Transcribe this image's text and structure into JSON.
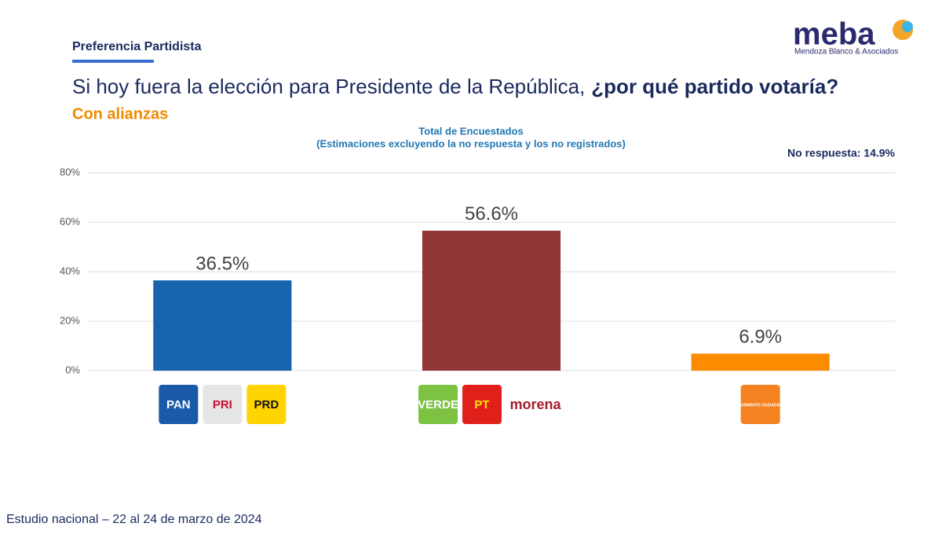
{
  "header": {
    "section": "Preferencia Partidista",
    "question": "Si hoy fuera la elección para Presidente de la República,",
    "question_emphasis": "¿por qué partido votaría?",
    "subtitle": "Con alianzas"
  },
  "brand": {
    "name": "meba",
    "tagline": "Mendoza Blanco & Asociados"
  },
  "footer": "Estudio nacional – 22 al 24 de marzo de 2024",
  "chart_data": {
    "type": "bar",
    "title": "Total de Encuestados",
    "subtitle": "(Estimaciones excluyendo la no respuesta y los no registrados)",
    "annotation": "No respuesta: 14.9%",
    "logos": [
      [
        "PAN",
        "PRI",
        "PRD"
      ],
      [
        "VERDE",
        "PT",
        "morena"
      ],
      [
        "MOVIMIENTO CIUDADANO"
      ]
    ],
    "values": [
      36.5,
      56.6,
      6.9
    ],
    "value_labels": [
      "36.5%",
      "56.6%",
      "6.9%"
    ],
    "colors": [
      "#1763ae",
      "#913636",
      "#fb8c00"
    ],
    "ylim": [
      0,
      80
    ],
    "yticks": [
      {
        "value": 0,
        "label": "0%"
      },
      {
        "value": 20,
        "label": "20%"
      },
      {
        "value": 40,
        "label": "40%"
      },
      {
        "value": 60,
        "label": "60%"
      },
      {
        "value": 80,
        "label": "80%"
      }
    ],
    "grid": true
  }
}
